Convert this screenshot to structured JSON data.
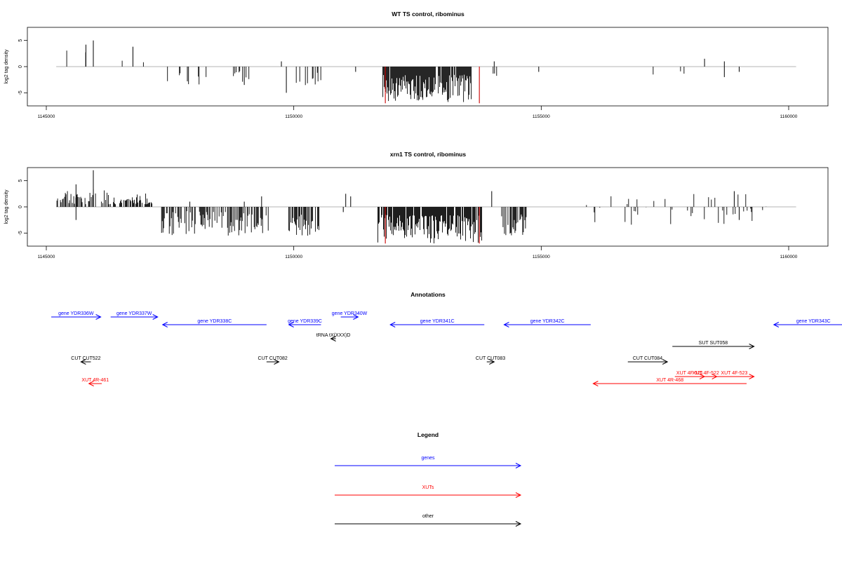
{
  "colors": {
    "gene": "#0000ff",
    "xut": "#ff0000",
    "other": "#000000",
    "highlight": "#cc0000",
    "baseline": "#9e9e9e",
    "bar": "#000000"
  },
  "panels": {
    "wt": {
      "title": "WT TS control, ribominus",
      "ylabel": "log2 tag density"
    },
    "xrn1": {
      "title": "xrn1 TS control, ribominus",
      "ylabel": "log2 tag density"
    }
  },
  "annotations_title": "Annotations",
  "legend": {
    "title": "Legend",
    "items": [
      {
        "label": "genes",
        "color": "#0000ff"
      },
      {
        "label": "XUTs",
        "color": "#ff0000"
      },
      {
        "label": "other",
        "color": "#000000"
      }
    ]
  },
  "chart_data": [
    {
      "type": "bar",
      "title": "WT TS control, ribominus",
      "xlabel": "",
      "ylabel": "log2 tag density",
      "xlim": [
        1145000,
        1160000
      ],
      "ylim": [
        -7.5,
        7.5
      ],
      "x_ticks": [
        1145000,
        1150000,
        1155000,
        1160000
      ],
      "y_ticks": [
        -5,
        0,
        5
      ],
      "y_tick_labels": [
        "-5",
        "0",
        "5"
      ],
      "grid": false,
      "baseline": 0,
      "segments": [
        {
          "start": 1145200,
          "end": 1146600,
          "density": 0.05,
          "min": 1.0,
          "max": 5.0,
          "seed": 1
        },
        {
          "start": 1146650,
          "end": 1147050,
          "density": 0.08,
          "min": 0.8,
          "max": 4.0,
          "seed": 2
        },
        {
          "start": 1147250,
          "end": 1149200,
          "density": 0.1,
          "min": -3.5,
          "max": -0.8,
          "seed": 3
        },
        {
          "start": 1150050,
          "end": 1150550,
          "density": 0.22,
          "min": -4.5,
          "max": -1.0,
          "seed": 4
        },
        {
          "start": 1151800,
          "end": 1153600,
          "density": 0.9,
          "min": -6.8,
          "max": -1.5,
          "seed": 5
        },
        {
          "start": 1154000,
          "end": 1154200,
          "density": 0.1,
          "min": -2.0,
          "max": -0.8,
          "seed": 6
        },
        {
          "start": 1156000,
          "end": 1159400,
          "density": 0.02,
          "min": -2.0,
          "max": -0.8,
          "seed": 7
        }
      ],
      "spikes": [
        {
          "x": 1145950,
          "y": 5.0
        },
        {
          "x": 1145800,
          "y": 4.2
        },
        {
          "x": 1146750,
          "y": 3.8
        },
        {
          "x": 1149750,
          "y": 1.0
        },
        {
          "x": 1149850,
          "y": -5.0
        },
        {
          "x": 1151250,
          "y": -1.0
        },
        {
          "x": 1154050,
          "y": 1.0
        },
        {
          "x": 1154950,
          "y": -1.0
        },
        {
          "x": 1158300,
          "y": 1.5
        },
        {
          "x": 1158700,
          "y": 1.0
        },
        {
          "x": 1158700,
          "y": -2.0
        },
        {
          "x": 1159000,
          "y": -1.0
        },
        {
          "x": 1149000,
          "y": -3.5
        },
        {
          "x": 1147850,
          "y": -2.8
        }
      ],
      "highlights": [
        {
          "x": 1151850,
          "y": -7.0
        },
        {
          "x": 1153750,
          "y": -7.0
        }
      ]
    },
    {
      "type": "bar",
      "title": "xrn1 TS control, ribominus",
      "xlabel": "",
      "ylabel": "log2 tag density",
      "xlim": [
        1145000,
        1160000
      ],
      "ylim": [
        -7.5,
        7.5
      ],
      "x_ticks": [
        1145000,
        1150000,
        1155000,
        1160000
      ],
      "y_ticks": [
        -5,
        0,
        5
      ],
      "y_tick_labels": [
        "-5",
        "0",
        "5"
      ],
      "grid": false,
      "baseline": 0,
      "segments": [
        {
          "start": 1145200,
          "end": 1146000,
          "density": 0.6,
          "min": 0.5,
          "max": 4.5,
          "seed": 11
        },
        {
          "start": 1146100,
          "end": 1147150,
          "density": 0.6,
          "min": 0.5,
          "max": 4.0,
          "seed": 12
        },
        {
          "start": 1147300,
          "end": 1149500,
          "density": 0.55,
          "min": -5.5,
          "max": -0.8,
          "seed": 13
        },
        {
          "start": 1149900,
          "end": 1150550,
          "density": 0.7,
          "min": -5.5,
          "max": -1.5,
          "seed": 14
        },
        {
          "start": 1151700,
          "end": 1153800,
          "density": 0.9,
          "min": -7.0,
          "max": -1.5,
          "seed": 15
        },
        {
          "start": 1154200,
          "end": 1154700,
          "density": 0.6,
          "min": -5.5,
          "max": -1.0,
          "seed": 16
        },
        {
          "start": 1155900,
          "end": 1159600,
          "density": 0.12,
          "min": -3.5,
          "max": 2.5,
          "seed": 17
        }
      ],
      "spikes": [
        {
          "x": 1145950,
          "y": 7.0
        },
        {
          "x": 1145600,
          "y": 4.3
        },
        {
          "x": 1145600,
          "y": -2.5
        },
        {
          "x": 1149000,
          "y": 1.0
        },
        {
          "x": 1149350,
          "y": 2.0
        },
        {
          "x": 1151050,
          "y": 2.5
        },
        {
          "x": 1151150,
          "y": 2.0
        },
        {
          "x": 1151000,
          "y": -1.0
        },
        {
          "x": 1154000,
          "y": 3.0
        },
        {
          "x": 1147900,
          "y": 1.0
        },
        {
          "x": 1158900,
          "y": 3.0
        },
        {
          "x": 1159000,
          "y": -2.5
        }
      ],
      "highlights": [
        {
          "x": 1151850,
          "y": -7.0
        },
        {
          "x": 1153750,
          "y": -7.0
        }
      ]
    }
  ],
  "annotation_items": [
    {
      "label": "gene YDR336W",
      "kind": "gene",
      "x1": 1145100,
      "x2": 1146100,
      "row": 0
    },
    {
      "label": "gene YDR337W",
      "kind": "gene",
      "x1": 1146300,
      "x2": 1147250,
      "row": 0
    },
    {
      "label": "gene YDR338C",
      "kind": "gene",
      "x1": 1149450,
      "x2": 1147350,
      "row": 1
    },
    {
      "label": "gene YDR339C",
      "kind": "gene",
      "x1": 1150550,
      "x2": 1149900,
      "row": 1
    },
    {
      "label": "gene YDR340W",
      "kind": "gene",
      "x1": 1150950,
      "x2": 1151300,
      "row": 0
    },
    {
      "label": "gene YDR341C",
      "kind": "gene",
      "x1": 1153850,
      "x2": 1151950,
      "row": 1
    },
    {
      "label": "gene YDR342C",
      "kind": "gene",
      "x1": 1156000,
      "x2": 1154250,
      "row": 1
    },
    {
      "label": "gene YDR343C",
      "kind": "gene",
      "x1": 1161300,
      "x2": 1159700,
      "row": 1
    },
    {
      "label": "tRNA tX(XXX)D",
      "kind": "other",
      "x1": 1150850,
      "x2": 1150750,
      "row": 2
    },
    {
      "label": "SUT SUT058",
      "kind": "other",
      "x1": 1157650,
      "x2": 1159300,
      "row": 3
    },
    {
      "label": "CUT CUT522",
      "kind": "other",
      "x1": 1145900,
      "x2": 1145700,
      "row": 4
    },
    {
      "label": "CUT CUT082",
      "kind": "other",
      "x1": 1149450,
      "x2": 1149700,
      "row": 4
    },
    {
      "label": "CUT CUT083",
      "kind": "other",
      "x1": 1153900,
      "x2": 1154050,
      "row": 4
    },
    {
      "label": "CUT CUT084",
      "kind": "other",
      "x1": 1156750,
      "x2": 1157550,
      "row": 4
    },
    {
      "label": "XUT 4R-461",
      "kind": "xut",
      "x1": 1146120,
      "x2": 1145860,
      "row": 6
    },
    {
      "label": "XUT 4F-521",
      "kind": "xut",
      "x1": 1157700,
      "x2": 1158300,
      "row": 5
    },
    {
      "label": "XUT 4F-522",
      "kind": "xut",
      "x1": 1158100,
      "x2": 1158550,
      "row": 5
    },
    {
      "label": "XUT 4F-523",
      "kind": "xut",
      "x1": 1158500,
      "x2": 1159300,
      "row": 5
    },
    {
      "label": "XUT 4R-468",
      "kind": "xut",
      "x1": 1159150,
      "x2": 1156050,
      "row": 6
    }
  ]
}
